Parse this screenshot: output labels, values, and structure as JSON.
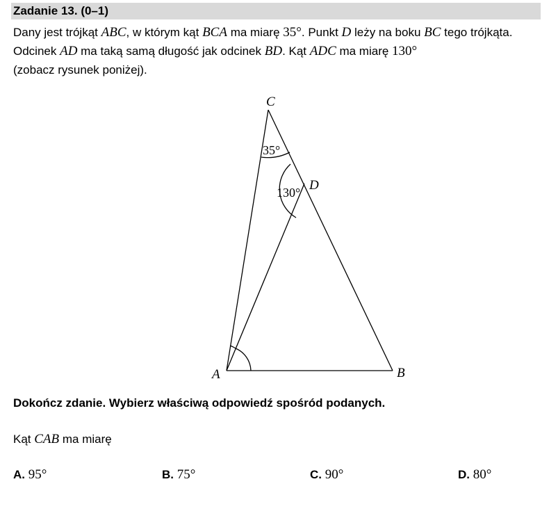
{
  "header": {
    "title": "Zadanie 13. (0–1)",
    "bar_color": "#d9d9d9"
  },
  "intro": {
    "p1": "Dany jest trójkąt ",
    "m1": "ABC",
    "p2": ", w którym kąt ",
    "m2": "BCA",
    "p3": " ma miarę ",
    "n1": "35°",
    "p4": ". Punkt ",
    "m3": "D",
    "p5": " leży na boku ",
    "m4": "BC",
    "p6": " tego trójkąta. Odcinek ",
    "m5": "AD",
    "p7": " ma taką samą długość jak odcinek ",
    "m6": "BD",
    "p8": ". Kąt ",
    "m7": "ADC",
    "p9": " ma miarę ",
    "n2": "130°",
    "p10": "(zobacz rysunek poniżej)."
  },
  "figure": {
    "vertex_labels": {
      "A": "A",
      "B": "B",
      "C": "C",
      "D": "D"
    },
    "angle_labels": {
      "angle_C": "35°",
      "angle_ADC": "130°"
    }
  },
  "instruction": "Dokończ zdanie. Wybierz właściwą odpowiedź spośród podanych.",
  "stem": {
    "before": "Kąt ",
    "math": "CAB",
    "after": " ma miarę"
  },
  "options": [
    {
      "letter": "A.",
      "value": "95°"
    },
    {
      "letter": "B.",
      "value": "75°"
    },
    {
      "letter": "C.",
      "value": "90°"
    },
    {
      "letter": "D.",
      "value": "80°"
    }
  ]
}
